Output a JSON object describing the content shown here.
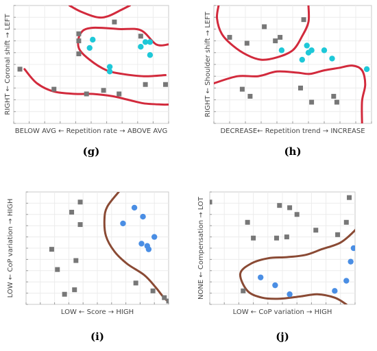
{
  "chart_data": [
    {
      "type": "scatter",
      "caption": "(g)",
      "xlabel": "BELOW AVG ← Repetition rate → ABOVE AVG",
      "ylabel": "RIGHT ← Coronal shift → LEFT",
      "xlim": [
        0,
        10
      ],
      "ylim": [
        0,
        10
      ],
      "grid": true,
      "colors": {
        "square": "#777777",
        "circle": "#1ec8d8",
        "boundary": "#d22a3c"
      },
      "series": [
        {
          "marker": "square",
          "points": [
            [
              0.4,
              4.6
            ],
            [
              2.6,
              2.9
            ],
            [
              4.2,
              5.9
            ],
            [
              4.2,
              7.0
            ],
            [
              4.2,
              7.6
            ],
            [
              4.7,
              2.5
            ],
            [
              5.8,
              2.8
            ],
            [
              6.5,
              8.6
            ],
            [
              6.8,
              2.5
            ],
            [
              8.2,
              7.4
            ],
            [
              8.5,
              3.3
            ],
            [
              9.8,
              3.3
            ]
          ]
        },
        {
          "marker": "circle",
          "points": [
            [
              4.9,
              6.4
            ],
            [
              5.1,
              7.1
            ],
            [
              6.2,
              4.4
            ],
            [
              6.2,
              4.8
            ],
            [
              8.2,
              6.5
            ],
            [
              8.5,
              6.9
            ],
            [
              8.8,
              6.9
            ],
            [
              8.8,
              5.8
            ]
          ]
        }
      ],
      "boundaries": [
        [
          [
            3.6,
            10.0
          ],
          [
            4.3,
            9.5
          ],
          [
            5.4,
            9.0
          ],
          [
            6.1,
            9.1
          ],
          [
            6.9,
            9.6
          ],
          [
            7.5,
            10.0
          ]
        ],
        [
          [
            0.7,
            4.6
          ],
          [
            1.5,
            3.4
          ],
          [
            2.6,
            2.7
          ],
          [
            4.0,
            2.5
          ],
          [
            5.1,
            2.5
          ],
          [
            6.4,
            2.3
          ],
          [
            7.4,
            2.0
          ],
          [
            8.4,
            1.7
          ],
          [
            9.6,
            1.6
          ],
          [
            10.0,
            1.6
          ]
        ],
        [
          [
            10.0,
            6.7
          ],
          [
            9.2,
            6.7
          ],
          [
            8.2,
            7.9
          ],
          [
            6.8,
            8.0
          ],
          [
            5.0,
            8.1
          ],
          [
            4.3,
            7.6
          ],
          [
            4.2,
            6.4
          ],
          [
            4.9,
            5.4
          ],
          [
            6.0,
            4.5
          ],
          [
            7.0,
            4.2
          ],
          [
            8.4,
            4.0
          ],
          [
            9.8,
            4.1
          ]
        ]
      ]
    },
    {
      "type": "scatter",
      "caption": "(h)",
      "xlabel": "DECREASE← Repetition trend → INCREASE",
      "ylabel": "RIGHT ← Shoulder shift → LEFT",
      "xlim": [
        0,
        10
      ],
      "ylim": [
        0,
        10
      ],
      "grid": true,
      "colors": {
        "square": "#777777",
        "circle": "#1ec8d8",
        "boundary": "#d22a3c"
      },
      "series": [
        {
          "marker": "square",
          "points": [
            [
              1.0,
              7.3
            ],
            [
              2.1,
              6.8
            ],
            [
              3.2,
              8.2
            ],
            [
              3.9,
              7.0
            ],
            [
              4.2,
              7.3
            ],
            [
              5.7,
              8.8
            ],
            [
              1.8,
              2.9
            ],
            [
              2.3,
              2.3
            ],
            [
              5.5,
              3.0
            ],
            [
              6.2,
              1.8
            ],
            [
              7.6,
              2.3
            ],
            [
              7.8,
              1.8
            ]
          ]
        },
        {
          "marker": "circle",
          "points": [
            [
              4.3,
              6.2
            ],
            [
              5.6,
              5.4
            ],
            [
              5.9,
              6.6
            ],
            [
              6.0,
              6.0
            ],
            [
              6.2,
              6.2
            ],
            [
              7.0,
              6.2
            ],
            [
              7.5,
              5.5
            ],
            [
              9.7,
              4.6
            ]
          ]
        }
      ],
      "boundaries": [
        [
          [
            0.3,
            10.0
          ],
          [
            0.2,
            8.9
          ],
          [
            0.5,
            7.6
          ],
          [
            1.2,
            6.6
          ],
          [
            2.1,
            5.8
          ],
          [
            3.0,
            5.4
          ],
          [
            4.0,
            5.6
          ],
          [
            5.0,
            6.2
          ],
          [
            5.6,
            7.4
          ],
          [
            6.0,
            8.6
          ],
          [
            6.0,
            10.0
          ]
        ],
        [
          [
            0.0,
            3.4
          ],
          [
            1.5,
            4.0
          ],
          [
            2.8,
            4.0
          ],
          [
            4.0,
            4.4
          ],
          [
            5.3,
            4.3
          ],
          [
            6.1,
            4.2
          ],
          [
            7.0,
            4.5
          ],
          [
            7.9,
            4.7
          ],
          [
            8.8,
            4.9
          ],
          [
            9.4,
            4.5
          ],
          [
            9.6,
            3.3
          ],
          [
            9.4,
            1.9
          ],
          [
            9.4,
            0.0
          ]
        ]
      ]
    },
    {
      "type": "scatter",
      "caption": "(i)",
      "xlabel": "LOW ← Score → HIGH",
      "ylabel": "LOW ← CoP variation → HIGH",
      "xlim": [
        0,
        10
      ],
      "ylim": [
        0,
        10
      ],
      "grid": true,
      "colors": {
        "square": "#777777",
        "circle": "#4a8ee4",
        "boundary": "#8a4a34"
      },
      "series": [
        {
          "marker": "square",
          "points": [
            [
              3.8,
              9.1
            ],
            [
              3.2,
              8.2
            ],
            [
              3.8,
              7.1
            ],
            [
              1.8,
              4.9
            ],
            [
              2.2,
              3.1
            ],
            [
              3.5,
              3.9
            ],
            [
              2.7,
              0.9
            ],
            [
              3.4,
              1.3
            ],
            [
              7.7,
              1.9
            ],
            [
              8.9,
              1.2
            ],
            [
              9.7,
              0.6
            ],
            [
              10.0,
              0.3
            ]
          ]
        },
        {
          "marker": "circle",
          "points": [
            [
              7.6,
              8.6
            ],
            [
              8.2,
              7.8
            ],
            [
              6.8,
              7.2
            ],
            [
              8.1,
              5.4
            ],
            [
              8.5,
              5.2
            ],
            [
              8.6,
              4.9
            ],
            [
              9.0,
              6.0
            ]
          ]
        }
      ],
      "boundaries": [
        [
          [
            6.5,
            10.0
          ],
          [
            5.7,
            8.7
          ],
          [
            5.5,
            7.6
          ],
          [
            5.6,
            6.1
          ],
          [
            6.2,
            4.7
          ],
          [
            7.1,
            3.6
          ],
          [
            8.3,
            2.6
          ],
          [
            9.1,
            1.5
          ],
          [
            9.6,
            0.7
          ],
          [
            10.0,
            0.2
          ]
        ]
      ]
    },
    {
      "type": "scatter",
      "caption": "(j)",
      "xlabel": "LOW ← CoP variation → HIGH",
      "ylabel": "NONE ← Compensation → LOT",
      "xlim": [
        0,
        10
      ],
      "ylim": [
        0,
        10
      ],
      "grid": true,
      "colors": {
        "square": "#777777",
        "circle": "#4a8ee4",
        "boundary": "#8a4a34"
      },
      "series": [
        {
          "marker": "square",
          "points": [
            [
              0.0,
              9.1
            ],
            [
              4.8,
              8.8
            ],
            [
              5.5,
              8.6
            ],
            [
              6.0,
              8.0
            ],
            [
              9.6,
              9.5
            ],
            [
              9.4,
              7.3
            ],
            [
              2.6,
              7.3
            ],
            [
              3.0,
              5.9
            ],
            [
              4.6,
              5.9
            ],
            [
              5.3,
              6.0
            ],
            [
              7.3,
              6.6
            ],
            [
              8.8,
              6.2
            ],
            [
              2.3,
              1.2
            ]
          ]
        },
        {
          "marker": "circle",
          "points": [
            [
              9.9,
              5.0
            ],
            [
              9.7,
              3.8
            ],
            [
              9.4,
              2.1
            ],
            [
              3.5,
              2.4
            ],
            [
              4.5,
              1.7
            ],
            [
              5.5,
              0.9
            ],
            [
              8.6,
              1.2
            ]
          ]
        }
      ],
      "boundaries": [
        [
          [
            10.2,
            9.9
          ],
          [
            10.5,
            8.6
          ],
          [
            10.5,
            7.5
          ],
          [
            10.0,
            6.6
          ],
          [
            9.0,
            5.5
          ],
          [
            7.7,
            4.9
          ],
          [
            6.6,
            4.4
          ],
          [
            5.3,
            4.2
          ],
          [
            4.0,
            4.1
          ],
          [
            2.8,
            3.6
          ],
          [
            2.1,
            2.7
          ],
          [
            2.6,
            1.2
          ],
          [
            3.6,
            0.6
          ],
          [
            4.8,
            0.5
          ],
          [
            6.2,
            0.7
          ],
          [
            7.4,
            0.9
          ],
          [
            8.6,
            0.6
          ],
          [
            9.4,
            0.0
          ]
        ]
      ]
    }
  ]
}
